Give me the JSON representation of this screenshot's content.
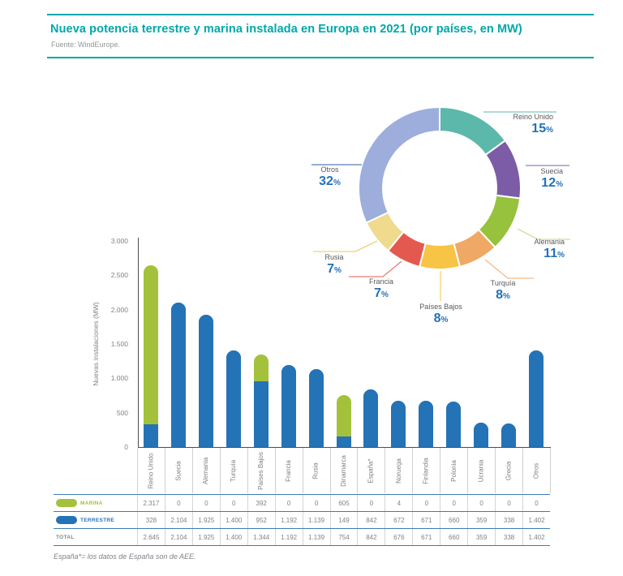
{
  "header": {
    "title": "Nueva potencia terrestre y marina instalada en Europa en 2021 (por países, en MW)",
    "source": "Fuente: WindEurope."
  },
  "footnote": "España*= los datos de España son de AEE.",
  "colors": {
    "teal": "#00A7A9",
    "bar_blue": "#2473B6",
    "bar_green": "#A4C13C",
    "pct_blue": "#2471B8",
    "gray_text": "#808285",
    "dark_gray_text": "#58595B",
    "table_line": "#3D7AB5",
    "divider": "#CFCFCF"
  },
  "chart_data": [
    {
      "type": "pie",
      "subtype": "donut",
      "legend_position": "outside-callouts",
      "slices": [
        {
          "label": "Reino Unido",
          "value": 15,
          "color": "#5CB8AB",
          "line_color": "#5CB8AB"
        },
        {
          "label": "Suecia",
          "value": 12,
          "color": "#7C5CA6",
          "line_color": "#7C5CA6"
        },
        {
          "label": "Alemania",
          "value": 11,
          "color": "#96C23D",
          "line_color": "#C3D87F"
        },
        {
          "label": "Turquía",
          "value": 8,
          "color": "#F0A865",
          "line_color": "#F0A865"
        },
        {
          "label": "Países Bajos",
          "value": 8,
          "color": "#F8C445",
          "line_color": "#F8C445"
        },
        {
          "label": "Francia",
          "value": 7,
          "color": "#E4594F",
          "line_color": "#E4594F"
        },
        {
          "label": "Rusia",
          "value": 7,
          "color": "#EFDA8E",
          "line_color": "#E9C75A"
        },
        {
          "label": "Otros",
          "value": 32,
          "color": "#9DAEDC",
          "line_color": "#2B5EA7"
        }
      ],
      "unit": "%"
    },
    {
      "type": "bar",
      "stacked": true,
      "ylabel": "Nuevas instalaciones (MW)",
      "ylim": [
        0,
        3000
      ],
      "grid": false,
      "yticks": [
        {
          "value": 0,
          "label": "0"
        },
        {
          "value": 500,
          "label": "500"
        },
        {
          "value": 1000,
          "label": "1.000"
        },
        {
          "value": 1500,
          "label": "1.500"
        },
        {
          "value": 2000,
          "label": "2.000"
        },
        {
          "value": 2500,
          "label": "2.500"
        },
        {
          "value": 3000,
          "label": "3.000"
        }
      ],
      "categories": [
        "Reino Unido",
        "Suecia",
        "Alemania",
        "Turquía",
        "Países Bajos",
        "Francia",
        "Rusia",
        "Dinamarca",
        "España*",
        "Noruega",
        "Finlandia",
        "Polonia",
        "Ucrania",
        "Grecia",
        "Otros"
      ],
      "series": [
        {
          "name": "MARINA",
          "color": "#A4C13C",
          "values": [
            2317,
            0,
            0,
            0,
            392,
            0,
            0,
            605,
            0,
            4,
            0,
            0,
            0,
            0,
            0
          ]
        },
        {
          "name": "TERRESTRE",
          "color": "#2473B6",
          "values": [
            328,
            2104,
            1925,
            1400,
            952,
            1192,
            1139,
            149,
            842,
            672,
            671,
            660,
            359,
            338,
            1402
          ]
        }
      ],
      "totals": [
        2645,
        2104,
        1925,
        1400,
        1344,
        1192,
        1139,
        754,
        842,
        676,
        671,
        660,
        359,
        338,
        1402
      ]
    }
  ],
  "table": {
    "rows": [
      {
        "label": "MARINA",
        "label_color": "#A4C13C",
        "pill_color": "#A4C13C",
        "values": [
          "2.317",
          "0",
          "0",
          "0",
          "392",
          "0",
          "0",
          "605",
          "0",
          "4",
          "0",
          "0",
          "0",
          "0",
          "0"
        ]
      },
      {
        "label": "TERRESTRE",
        "label_color": "#2473B6",
        "pill_color": "#2473B6",
        "values": [
          "328",
          "2.104",
          "1.925",
          "1.400",
          "952",
          "1.192",
          "1.139",
          "149",
          "842",
          "672",
          "671",
          "660",
          "359",
          "338",
          "1.402"
        ]
      },
      {
        "label": "TOTAL",
        "label_color": "#808285",
        "pill_color": null,
        "values": [
          "2.645",
          "2.104",
          "1.925",
          "1.400",
          "1.344",
          "1.192",
          "1.139",
          "754",
          "842",
          "676",
          "671",
          "660",
          "359",
          "338",
          "1.402"
        ]
      }
    ]
  }
}
